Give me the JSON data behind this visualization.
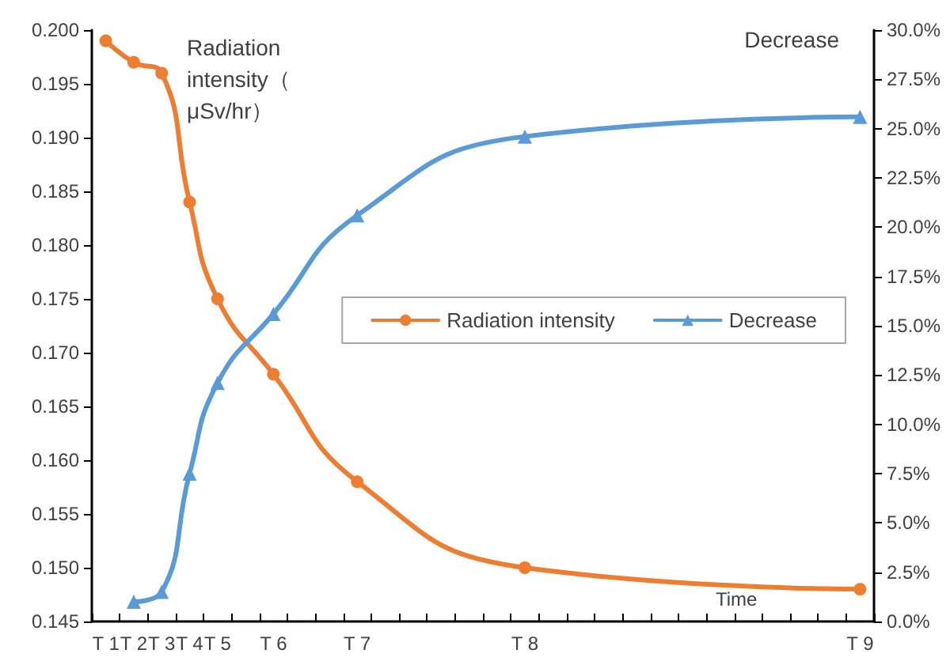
{
  "chart_data": {
    "type": "line",
    "xlabel": "Time",
    "ylabel": "Radiation intensity（μSv/hr）",
    "y2label": "Decrease",
    "categories": [
      "T 1",
      "T 2",
      "T 3",
      "T 4",
      "T 5",
      null,
      "T 6",
      null,
      null,
      "T 7",
      null,
      null,
      null,
      null,
      null,
      "T 8",
      null,
      null,
      null,
      null,
      null,
      null,
      null,
      null,
      null,
      null,
      null,
      "T 9"
    ],
    "series": [
      {
        "name": "Radiation intensity",
        "color": "#ed7d31",
        "marker": "circle",
        "values": [
          0.199,
          0.197,
          0.196,
          0.184,
          0.175,
          null,
          0.168,
          null,
          null,
          0.158,
          null,
          null,
          null,
          null,
          null,
          0.15,
          null,
          null,
          null,
          null,
          null,
          null,
          null,
          null,
          null,
          null,
          null,
          0.148
        ]
      },
      {
        "name": "Decrease",
        "color": "#5b9bd5",
        "marker": "triangle",
        "axis": "y2",
        "values": [
          null,
          1.0,
          1.5,
          7.5,
          12.1,
          null,
          15.6,
          null,
          null,
          20.6,
          null,
          null,
          null,
          null,
          null,
          24.6,
          null,
          null,
          null,
          null,
          null,
          null,
          null,
          null,
          null,
          null,
          null,
          25.6
        ]
      }
    ],
    "ylim": [
      0.145,
      0.2
    ],
    "yticks": [
      {
        "value": 0.145,
        "label": "0.145"
      },
      {
        "value": 0.15,
        "label": "0.150"
      },
      {
        "value": 0.155,
        "label": "0.155"
      },
      {
        "value": 0.16,
        "label": "0.160"
      },
      {
        "value": 0.165,
        "label": "0.165"
      },
      {
        "value": 0.17,
        "label": "0.170"
      },
      {
        "value": 0.175,
        "label": "0.175"
      },
      {
        "value": 0.18,
        "label": "0.180"
      },
      {
        "value": 0.185,
        "label": "0.185"
      },
      {
        "value": 0.19,
        "label": "0.190"
      },
      {
        "value": 0.195,
        "label": "0.195"
      },
      {
        "value": 0.2,
        "label": "0.200"
      }
    ],
    "y2lim": [
      0,
      30
    ],
    "y2ticks": [
      {
        "value": 0,
        "label": "0.0%"
      },
      {
        "value": 2.5,
        "label": "2.5%"
      },
      {
        "value": 5,
        "label": "5.0%"
      },
      {
        "value": 7.5,
        "label": "7.5%"
      },
      {
        "value": 10,
        "label": "10.0%"
      },
      {
        "value": 12.5,
        "label": "12.5%"
      },
      {
        "value": 15,
        "label": "15.0%"
      },
      {
        "value": 17.5,
        "label": "17.5%"
      },
      {
        "value": 20,
        "label": "20.0%"
      },
      {
        "value": 22.5,
        "label": "22.5%"
      },
      {
        "value": 25,
        "label": "25.0%"
      },
      {
        "value": 27.5,
        "label": "27.5%"
      },
      {
        "value": 30,
        "label": "30.0%"
      }
    ],
    "legend": "right",
    "grid": false,
    "line_style": "solid"
  }
}
